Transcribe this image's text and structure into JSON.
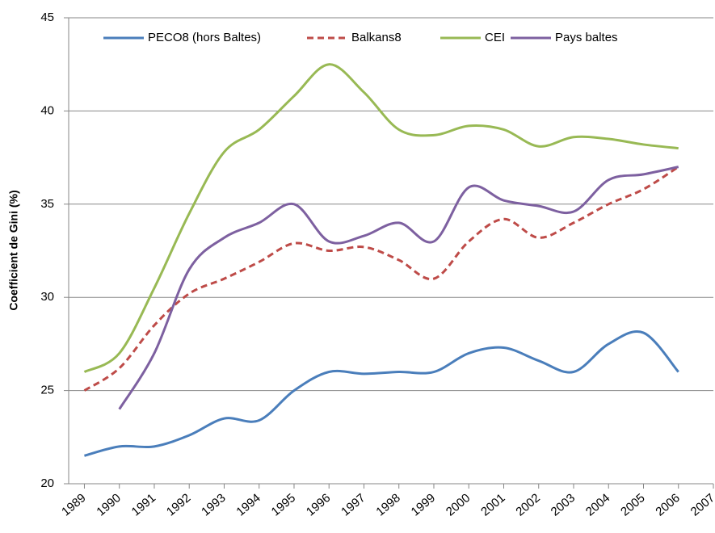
{
  "chart_data": {
    "type": "line",
    "y_label": "Coefficient de Gini (%)",
    "x": [
      1989,
      1990,
      1991,
      1992,
      1993,
      1994,
      1995,
      1996,
      1997,
      1998,
      1999,
      2000,
      2001,
      2002,
      2003,
      2004,
      2005,
      2006
    ],
    "series": [
      {
        "name": "PECO8 (hors Baltes)",
        "color": "#4a7ebb",
        "dashed": false,
        "values": [
          21.5,
          22.0,
          22.0,
          22.6,
          23.5,
          23.4,
          25.0,
          26.0,
          25.9,
          26.0,
          26.0,
          27.0,
          27.3,
          26.6,
          26.0,
          27.5,
          28.1,
          26.0
        ]
      },
      {
        "name": "Balkans8",
        "color": "#be4b48",
        "dashed": true,
        "values": [
          25.0,
          26.2,
          28.5,
          30.2,
          31.0,
          31.9,
          32.9,
          32.5,
          32.7,
          32.0,
          31.0,
          33.0,
          34.2,
          33.2,
          34.0,
          35.0,
          35.8,
          37.0
        ]
      },
      {
        "name": "CEI",
        "color": "#98b954",
        "dashed": false,
        "values": [
          26.0,
          27.0,
          30.5,
          34.5,
          37.8,
          39.0,
          40.8,
          42.5,
          41.0,
          39.0,
          38.7,
          39.2,
          39.0,
          38.1,
          38.6,
          38.5,
          38.2,
          38.0
        ]
      },
      {
        "name": "Pays baltes",
        "color": "#7d60a0",
        "dashed": false,
        "values": [
          null,
          24.0,
          27.0,
          31.5,
          33.2,
          34.0,
          35.0,
          33.0,
          33.3,
          34.0,
          33.0,
          35.9,
          35.2,
          34.9,
          34.6,
          36.3,
          36.6,
          37.0
        ]
      }
    ],
    "xlim": [
      1988.55,
      2007
    ],
    "xticks": [
      1989,
      1990,
      1991,
      1992,
      1993,
      1994,
      1995,
      1996,
      1997,
      1998,
      1999,
      2000,
      2001,
      2002,
      2003,
      2004,
      2005,
      2006,
      2007
    ],
    "ylim": [
      20,
      45
    ],
    "yticks": [
      20,
      25,
      30,
      35,
      40,
      45
    ],
    "grid": true,
    "legend": "top"
  }
}
